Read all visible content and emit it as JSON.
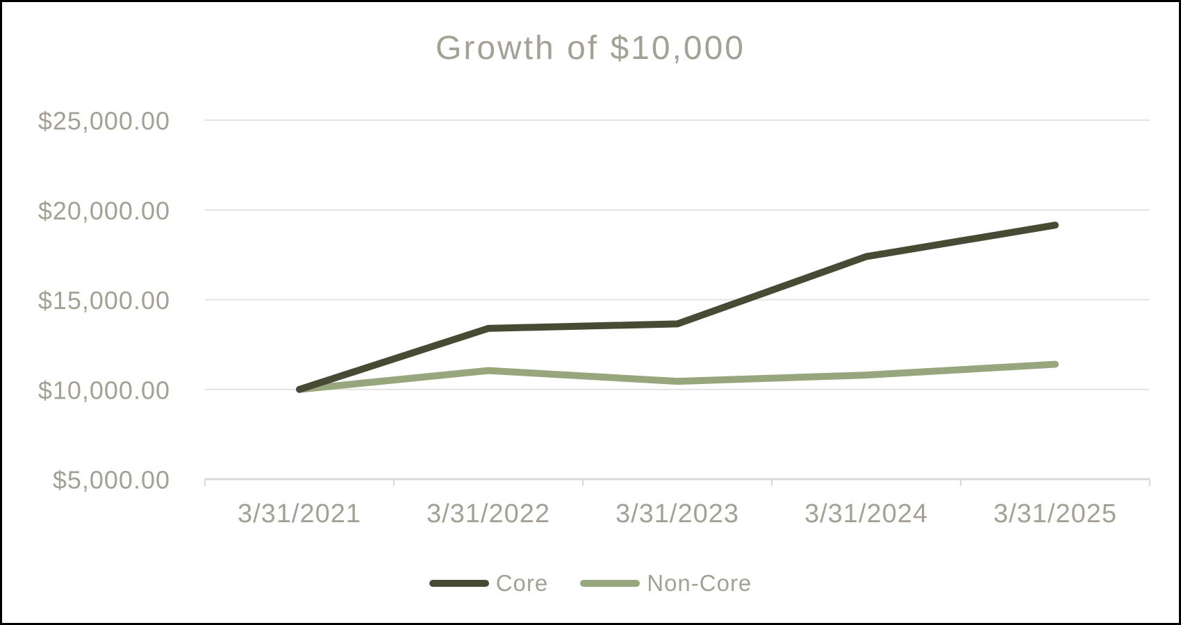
{
  "title": "Growth of $10,000",
  "colors": {
    "text": "#A5A096",
    "gridline": "#E3E3E3",
    "axis": "#D8D8D8",
    "background": "#FFFFFF",
    "border": "#000000",
    "core_line": "#474B33",
    "non_core_line": "#98A67E"
  },
  "chart_data": {
    "type": "line",
    "title": "Growth of $10,000",
    "categories": [
      "3/31/2021",
      "3/31/2022",
      "3/31/2023",
      "3/31/2024",
      "3/31/2025"
    ],
    "series": [
      {
        "name": "Core",
        "color": "#474B33",
        "values": [
          10000,
          13400,
          13650,
          17400,
          19150
        ]
      },
      {
        "name": "Non-Core",
        "color": "#98A67E",
        "values": [
          10000,
          11050,
          10450,
          10800,
          11400
        ]
      }
    ],
    "y_ticks": [
      {
        "value": 5000,
        "label": "$5,000.00"
      },
      {
        "value": 10000,
        "label": "$10,000.00"
      },
      {
        "value": 15000,
        "label": "$15,000.00"
      },
      {
        "value": 20000,
        "label": "$20,000.00"
      },
      {
        "value": 25000,
        "label": "$25,000.00"
      }
    ],
    "ylim": [
      5000,
      25000
    ],
    "xlabel": "",
    "ylabel": "",
    "grid": true,
    "legend_position": "bottom"
  },
  "legend": {
    "items": [
      {
        "label": "Core"
      },
      {
        "label": "Non-Core"
      }
    ]
  }
}
